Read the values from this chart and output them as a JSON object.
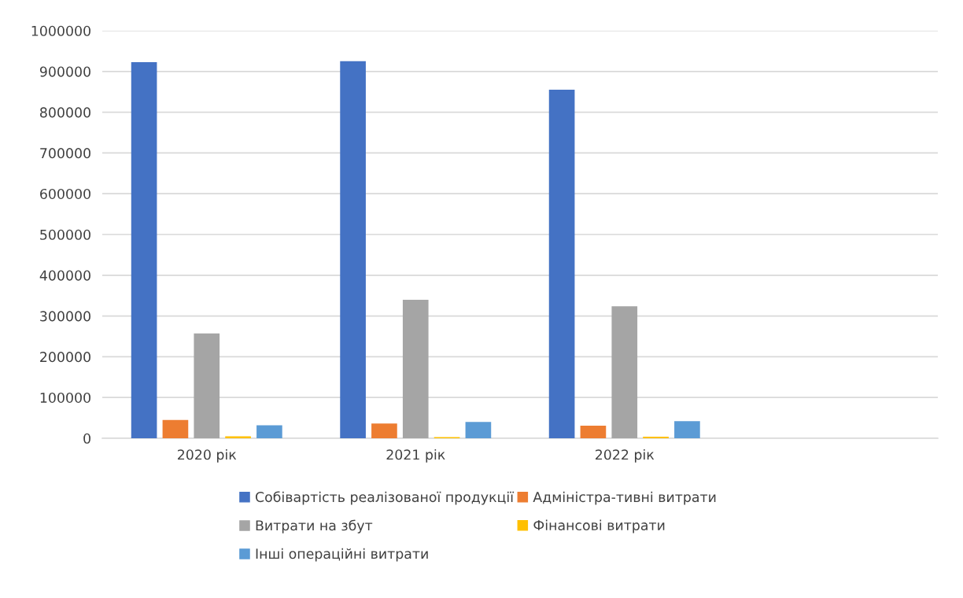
{
  "chart_data": {
    "type": "bar",
    "categories": [
      "2020 рік",
      "2021 рік",
      "2022 рік",
      null
    ],
    "series": [
      {
        "name": "Собівартість реалізованої продукції",
        "color": "#4472c4",
        "values": [
          923000,
          925000,
          855000,
          null
        ]
      },
      {
        "name": "Адміністра-тивні витрати",
        "color": "#ed7d31",
        "values": [
          45000,
          36000,
          31000,
          null
        ]
      },
      {
        "name": "Витрати на збут",
        "color": "#a5a5a5",
        "values": [
          257000,
          340000,
          324000,
          null
        ]
      },
      {
        "name": "Фінансові витрати",
        "color": "#ffc000",
        "values": [
          5000,
          3000,
          4000,
          null
        ]
      },
      {
        "name": "Інші операційні витрати",
        "color": "#5b9bd5",
        "values": [
          32000,
          40000,
          42000,
          null
        ]
      }
    ],
    "ylim": [
      0,
      1000000
    ],
    "yticks": [
      0,
      100000,
      200000,
      300000,
      400000,
      500000,
      600000,
      700000,
      800000,
      900000,
      1000000
    ],
    "grid": "y",
    "legend": "bottom"
  }
}
